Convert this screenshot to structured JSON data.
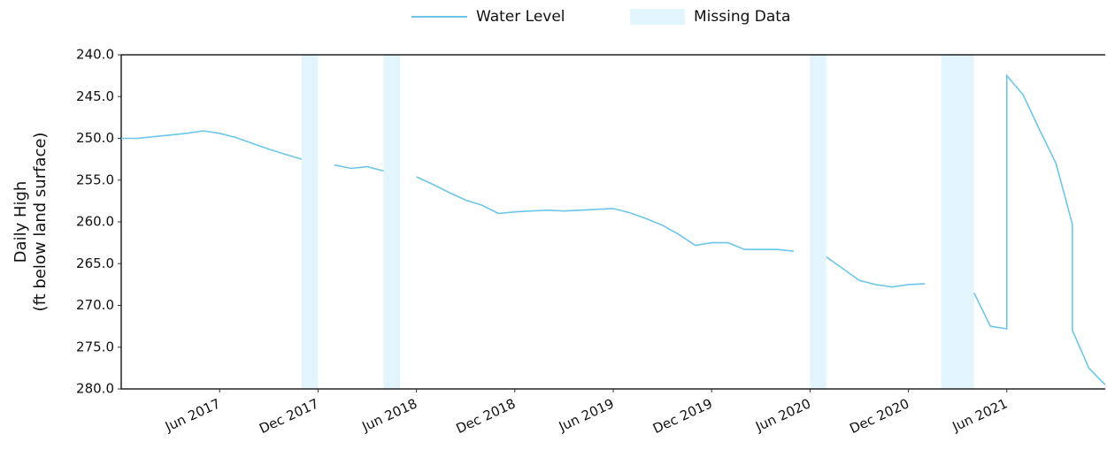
{
  "chart_data": {
    "type": "line",
    "y_label": [
      "Daily High",
      "(ft below land surface)"
    ],
    "x": [
      "2016-12",
      "2017-01",
      "2017-02",
      "2017-03",
      "2017-04",
      "2017-05",
      "2017-06",
      "2017-07",
      "2017-08",
      "2017-09",
      "2017-10",
      "2017-11",
      "2017-12",
      "2018-01",
      "2018-02",
      "2018-03",
      "2018-04",
      "2018-05",
      "2018-06",
      "2018-07",
      "2018-08",
      "2018-09",
      "2018-10",
      "2018-11",
      "2018-12",
      "2019-01",
      "2019-02",
      "2019-03",
      "2019-04",
      "2019-05",
      "2019-06",
      "2019-07",
      "2019-08",
      "2019-09",
      "2019-10",
      "2019-11",
      "2019-12",
      "2020-01",
      "2020-02",
      "2020-03",
      "2020-04",
      "2020-05",
      "2020-06",
      "2020-07",
      "2020-08",
      "2020-09",
      "2020-10",
      "2020-11",
      "2020-12",
      "2021-01",
      "2021-02",
      "2021-03",
      "2021-04",
      "2021-05",
      "2021-06",
      "2021-06",
      "2021-07",
      "2021-08",
      "2021-09",
      "2021-10",
      "2021-10",
      "2021-11",
      "2021-12"
    ],
    "series": [
      {
        "name": "Water Level",
        "color": "#6cc6ea",
        "values": [
          250,
          250,
          249.8,
          249.6,
          249.4,
          249.1,
          249.4,
          249.9,
          250.6,
          251.3,
          251.9,
          252.5,
          null,
          253.2,
          253.6,
          253.4,
          253.9,
          null,
          254.6,
          255.5,
          256.5,
          257.4,
          258,
          259,
          258.8,
          258.7,
          258.6,
          258.7,
          258.6,
          258.5,
          258.4,
          258.9,
          259.6,
          260.4,
          261.5,
          262.8,
          262.5,
          262.5,
          263.3,
          263.3,
          263.3,
          263.5,
          null,
          264.2,
          265.6,
          267,
          267.5,
          267.8,
          267.5,
          267.4,
          null,
          null,
          268.5,
          272.5,
          272.8,
          242.5,
          244.8,
          249,
          253,
          260.3,
          273,
          277.5,
          279.5
        ]
      }
    ],
    "missing": {
      "name": "Missing Data",
      "color": "#e3f5fc",
      "ranges": [
        [
          "2017-11",
          "2017-12"
        ],
        [
          "2018-04",
          "2018-05"
        ],
        [
          "2020-06",
          "2020-07"
        ],
        [
          "2021-02",
          "2021-04"
        ]
      ]
    },
    "xlim": [
      "2016-12",
      "2021-12"
    ],
    "xticks": [
      {
        "value": "2017-06",
        "label": "Jun 2017"
      },
      {
        "value": "2017-12",
        "label": "Dec 2017"
      },
      {
        "value": "2018-06",
        "label": "Jun 2018"
      },
      {
        "value": "2018-12",
        "label": "Dec 2018"
      },
      {
        "value": "2019-06",
        "label": "Jun 2019"
      },
      {
        "value": "2019-12",
        "label": "Dec 2019"
      },
      {
        "value": "2020-06",
        "label": "Jun 2020"
      },
      {
        "value": "2020-12",
        "label": "Dec 2020"
      },
      {
        "value": "2021-06",
        "label": "Jun 2021"
      }
    ],
    "ylim": [
      240,
      280
    ],
    "y_inverted": true,
    "yticks": [
      {
        "value": 240,
        "label": "240.0"
      },
      {
        "value": 245,
        "label": "245.0"
      },
      {
        "value": 250,
        "label": "250.0"
      },
      {
        "value": 255,
        "label": "255.0"
      },
      {
        "value": 260,
        "label": "260.0"
      },
      {
        "value": 265,
        "label": "265.0"
      },
      {
        "value": 270,
        "label": "270.0"
      },
      {
        "value": 275,
        "label": "275.0"
      },
      {
        "value": 280,
        "label": "280.0"
      }
    ],
    "legend": "top"
  }
}
